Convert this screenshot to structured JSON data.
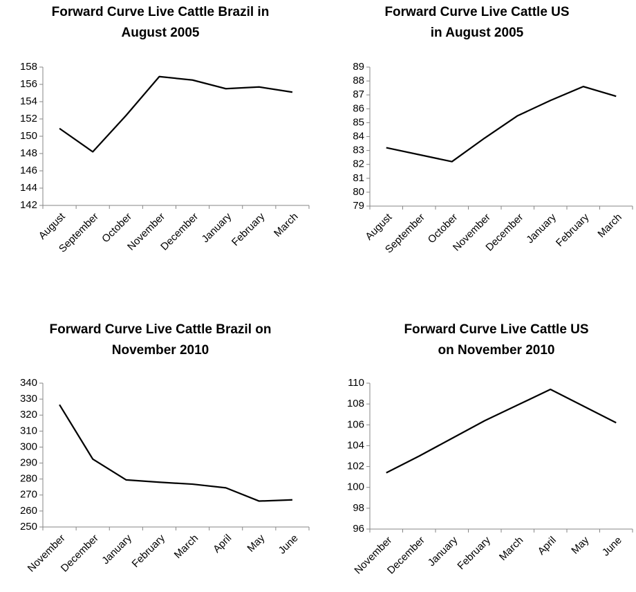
{
  "chart_data": [
    {
      "type": "line",
      "title": [
        "Forward Curve Live Cattle Brazil in",
        "August 2005"
      ],
      "categories": [
        "August",
        "September",
        "October",
        "November",
        "December",
        "January",
        "February",
        "March"
      ],
      "series": [
        {
          "color": "#000000",
          "values": [
            150.9,
            148.2,
            152.4,
            156.9,
            156.5,
            155.5,
            155.7,
            155.1
          ]
        }
      ],
      "ylim": [
        142,
        158
      ],
      "yticks": [
        142,
        144,
        146,
        148,
        150,
        152,
        154,
        156,
        158
      ],
      "grid": false
    },
    {
      "type": "line",
      "title": [
        "Forward Curve Live Cattle US",
        "in August 2005"
      ],
      "categories": [
        "August",
        "September",
        "October",
        "November",
        "December",
        "January",
        "February",
        "March"
      ],
      "series": [
        {
          "color": "#000000",
          "values": [
            83.2,
            82.7,
            82.2,
            83.9,
            85.5,
            86.6,
            87.6,
            86.9
          ]
        }
      ],
      "ylim": [
        79,
        89
      ],
      "yticks": [
        79,
        80,
        81,
        82,
        83,
        84,
        85,
        86,
        87,
        88,
        89
      ],
      "grid": false
    },
    {
      "type": "line",
      "title": [
        "Forward Curve Live Cattle Brazil on",
        "November 2010"
      ],
      "categories": [
        "November",
        "December",
        "January",
        "February",
        "March",
        "April",
        "May",
        "June"
      ],
      "series": [
        {
          "color": "#000000",
          "values": [
            326.5,
            292.5,
            279.5,
            278,
            276.8,
            274.5,
            266.2,
            267
          ]
        }
      ],
      "ylim": [
        250,
        340
      ],
      "yticks": [
        250,
        260,
        270,
        280,
        290,
        300,
        310,
        320,
        330,
        340
      ],
      "grid": false
    },
    {
      "type": "line",
      "title": [
        "Forward Curve Live Cattle US",
        "on November 2010"
      ],
      "categories": [
        "November",
        "December",
        "January",
        "February",
        "March",
        "April",
        "May",
        "June"
      ],
      "series": [
        {
          "color": "#000000",
          "values": [
            101.4,
            103,
            104.7,
            106.4,
            107.9,
            109.4,
            107.8,
            106.2
          ]
        }
      ],
      "ylim": [
        96,
        110
      ],
      "yticks": [
        96,
        98,
        100,
        102,
        104,
        106,
        108,
        110
      ],
      "grid": false
    }
  ]
}
